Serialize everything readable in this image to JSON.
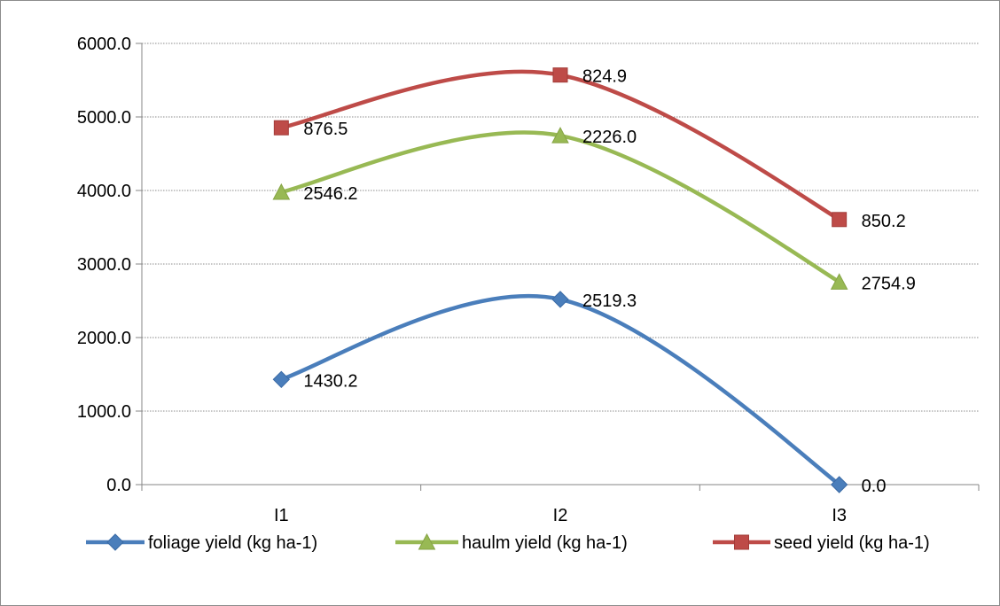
{
  "chart_data": {
    "type": "line",
    "title": "",
    "xlabel": "",
    "ylabel": "",
    "categories": [
      "I1",
      "I2",
      "I3"
    ],
    "ylim": [
      0,
      6000
    ],
    "yticks": [
      "0.0",
      "1000.0",
      "2000.0",
      "3000.0",
      "4000.0",
      "5000.0",
      "6000.0"
    ],
    "grid": true,
    "smooth": true,
    "legend_position": "bottom",
    "series": [
      {
        "name": "foliage yield (kg ha-1)",
        "color": "#4a7ebb",
        "marker": "diamond",
        "values": [
          1430.2,
          2519.3,
          0.0
        ],
        "labels": [
          "1430.2",
          "2519.3",
          "0.0"
        ]
      },
      {
        "name": "haulm yield (kg ha-1)",
        "color": "#98b954",
        "marker": "triangle",
        "values": [
          3976.4,
          4745.3,
          2754.9
        ],
        "labels": [
          "2546.2",
          "2226.0",
          "2754.9"
        ]
      },
      {
        "name": "seed yield (kg ha-1)",
        "color": "#be4b48",
        "marker": "square",
        "values": [
          4852.9,
          5570.2,
          3605.1
        ],
        "labels": [
          "876.5",
          "824.9",
          "850.2"
        ]
      }
    ]
  }
}
